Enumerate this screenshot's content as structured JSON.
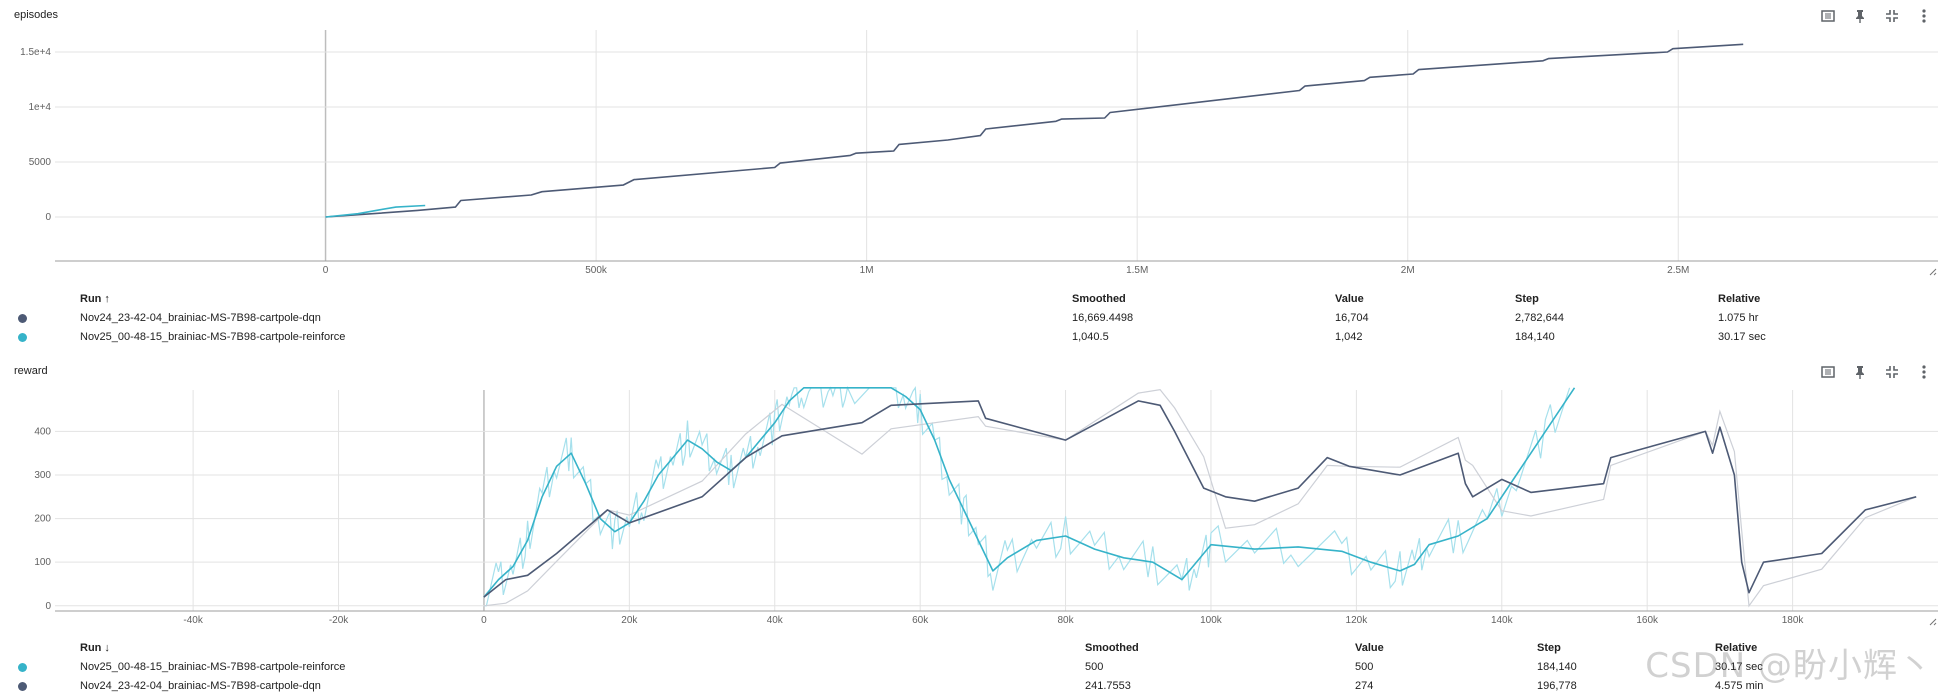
{
  "colors": {
    "dqn": "#4d5a75",
    "reinforce": "#36b3c9",
    "reinforce_raw": "#a6e0ec",
    "dqn_raw": "#cdd0d7",
    "grid": "#e3e3e3"
  },
  "toolbar": {
    "icons": [
      "fit-domain-icon",
      "pin-icon",
      "collapse-icon",
      "more-vert-icon"
    ]
  },
  "table_headers": {
    "run": "Run",
    "smoothed": "Smoothed",
    "value": "Value",
    "step": "Step",
    "relative": "Relative"
  },
  "episodes_card": {
    "title": "episodes",
    "sort_arrow": "↑",
    "rows": [
      {
        "run": "Nov24_23-42-04_brainiac-MS-7B98-cartpole-dqn",
        "smoothed": "16,669.4498",
        "value": "16,704",
        "step": "2,782,644",
        "relative": "1.075 hr"
      },
      {
        "run": "Nov25_00-48-15_brainiac-MS-7B98-cartpole-reinforce",
        "smoothed": "1,040.5",
        "value": "1,042",
        "step": "184,140",
        "relative": "30.17 sec"
      }
    ]
  },
  "reward_card": {
    "title": "reward",
    "sort_arrow": "↓",
    "rows": [
      {
        "run": "Nov25_00-48-15_brainiac-MS-7B98-cartpole-reinforce",
        "smoothed": "500",
        "value": "500",
        "step": "184,140",
        "relative": "30.17 sec"
      },
      {
        "run": "Nov24_23-42-04_brainiac-MS-7B98-cartpole-dqn",
        "smoothed": "241.7553",
        "value": "274",
        "step": "196,778",
        "relative": "4.575 min"
      }
    ]
  },
  "watermark": "CSDN @盼小辉丶",
  "chart_data": [
    {
      "type": "line",
      "xlim": [
        -500000,
        2980000
      ],
      "ylim": [
        -4000,
        17000
      ],
      "xticks": [
        0,
        500000,
        1000000,
        1500000,
        2000000,
        2500000
      ],
      "xtick_labels": [
        "0",
        "500k",
        "1M",
        "1.5M",
        "2M",
        "2.5M"
      ],
      "yticks": [
        0,
        5000,
        10000,
        15000
      ],
      "ytick_labels": [
        "0",
        "5000",
        "1e+4",
        "1.5e+4"
      ],
      "grid": true,
      "series": [
        {
          "name": "Nov24_23-42-04_brainiac-MS-7B98-cartpole-dqn",
          "color": "#4d5a75",
          "x": [
            0,
            100000,
            170000,
            240000,
            250000,
            380000,
            400000,
            550000,
            570000,
            830000,
            840000,
            970000,
            980000,
            1050000,
            1060000,
            1150000,
            1210000,
            1220000,
            1350000,
            1360000,
            1440000,
            1450000,
            1800000,
            1810000,
            1920000,
            1930000,
            2010000,
            2020000,
            2250000,
            2260000,
            2480000,
            2490000,
            2620000
          ],
          "y": [
            0,
            350,
            600,
            900,
            1500,
            2000,
            2300,
            2900,
            3400,
            4500,
            4900,
            5600,
            5800,
            6000,
            6600,
            7000,
            7400,
            8000,
            8700,
            8900,
            9000,
            9500,
            11500,
            11900,
            12400,
            12700,
            13000,
            13400,
            14200,
            14400,
            15000,
            15300,
            15700
          ]
        },
        {
          "name": "Nov25_00-48-15_brainiac-MS-7B98-cartpole-reinforce",
          "color": "#36b3c9",
          "x": [
            0,
            60000,
            100000,
            130000,
            184140
          ],
          "y": [
            0,
            300,
            650,
            900,
            1042
          ]
        }
      ]
    },
    {
      "type": "line",
      "xlim": [
        -59000,
        200000
      ],
      "ylim": [
        -15000,
        1000
      ],
      "ylim_note": "ignored",
      "y_range": [
        -12,
        495
      ],
      "xticks": [
        -40000,
        -20000,
        0,
        20000,
        40000,
        60000,
        80000,
        100000,
        120000,
        140000,
        160000,
        180000
      ],
      "xtick_labels": [
        "-40k",
        "-20k",
        "0",
        "20k",
        "40k",
        "60k",
        "80k",
        "100k",
        "120k",
        "140k",
        "160k",
        "180k"
      ],
      "yticks": [
        0,
        100,
        200,
        300,
        400
      ],
      "ytick_labels": [
        "0",
        "100",
        "200",
        "300",
        "400"
      ],
      "grid": true,
      "series": [
        {
          "name": "Nov25_00-48-15_brainiac-MS-7B98-cartpole-reinforce",
          "color": "#36b3c9",
          "x": [
            0,
            2000,
            4000,
            6000,
            8000,
            10000,
            12000,
            14000,
            16000,
            18000,
            20000,
            22000,
            24000,
            26000,
            28000,
            30000,
            32000,
            34000,
            36000,
            38000,
            40000,
            42000,
            44000,
            46000,
            48000,
            50000,
            56000,
            58000,
            60000,
            62000,
            64000,
            66000,
            68000,
            70000,
            72000,
            76000,
            80000,
            84000,
            88000,
            92000,
            96000,
            98000,
            100000,
            106000,
            112000,
            118000,
            122000,
            126000,
            128000,
            130000,
            134000,
            138000,
            142000,
            146000,
            150000
          ],
          "y": [
            20,
            60,
            90,
            150,
            250,
            320,
            350,
            280,
            200,
            170,
            190,
            240,
            300,
            340,
            380,
            360,
            330,
            310,
            340,
            380,
            420,
            470,
            500,
            500,
            500,
            500,
            500,
            480,
            450,
            380,
            290,
            220,
            150,
            80,
            110,
            150,
            160,
            130,
            110,
            100,
            60,
            100,
            140,
            130,
            135,
            125,
            100,
            80,
            95,
            140,
            160,
            200,
            300,
            400,
            500
          ]
        },
        {
          "name": "Nov24_23-42-04_brainiac-MS-7B98-cartpole-dqn",
          "color": "#4d5a75",
          "x": [
            0,
            3000,
            6000,
            10000,
            17000,
            20000,
            30000,
            36000,
            41000,
            52000,
            56000,
            68000,
            69000,
            80000,
            90000,
            93000,
            95000,
            99000,
            102000,
            106000,
            112000,
            116000,
            119000,
            126000,
            134000,
            135000,
            136000,
            140000,
            144000,
            154000,
            155000,
            168000,
            169000,
            170000,
            172000,
            173000,
            174000,
            176000,
            184000,
            190000,
            197000
          ],
          "y": [
            20,
            60,
            70,
            120,
            220,
            190,
            250,
            340,
            390,
            420,
            460,
            470,
            430,
            380,
            470,
            460,
            400,
            270,
            250,
            240,
            270,
            340,
            320,
            300,
            350,
            280,
            250,
            290,
            260,
            280,
            340,
            400,
            350,
            410,
            300,
            100,
            30,
            100,
            120,
            220,
            250
          ]
        }
      ]
    }
  ]
}
